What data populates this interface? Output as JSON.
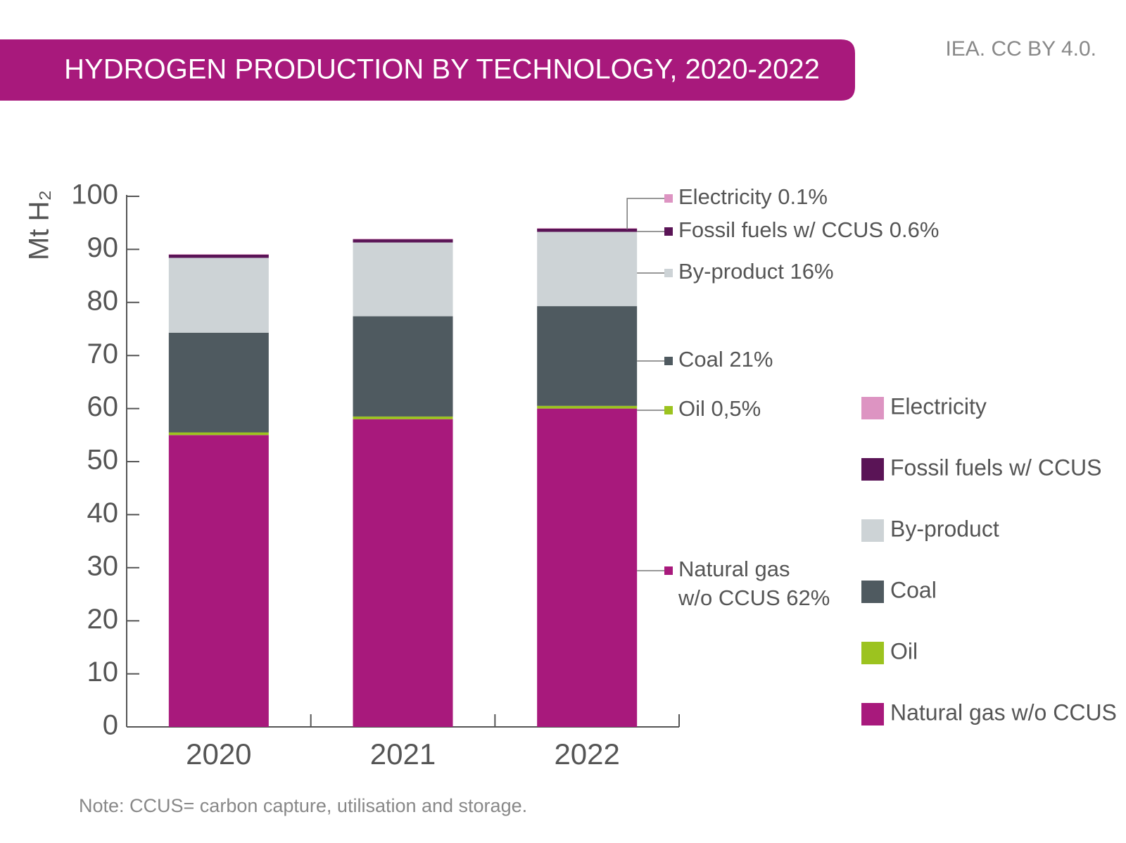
{
  "chart_data": {
    "type": "stacked_bar",
    "title": "HYDROGEN PRODUCTION BY TECHNOLOGY, 2020-2022",
    "source": "IEA. CC BY 4.0.",
    "y_label": "Mt H₂",
    "note": "Note: CCUS= carbon capture, utilisation and storage.",
    "categories": [
      "2020",
      "2021",
      "2022"
    ],
    "series": [
      {
        "name": "Natural gas w/o CCUS",
        "color": "#a8197c",
        "values": [
          55.0,
          58.0,
          60.0
        ]
      },
      {
        "name": "Oil",
        "color": "#9cc31f",
        "values": [
          0.5,
          0.5,
          0.5
        ]
      },
      {
        "name": "Coal",
        "color": "#4f5a60",
        "values": [
          18.8,
          18.9,
          18.8
        ]
      },
      {
        "name": "By-product",
        "color": "#cdd3d6",
        "values": [
          14.1,
          13.9,
          14.0
        ]
      },
      {
        "name": "Fossil fuels w/ CCUS",
        "color": "#5a1456",
        "values": [
          0.6,
          0.6,
          0.6
        ]
      },
      {
        "name": "Electricity",
        "color": "#dd94c2",
        "values": [
          0.1,
          0.1,
          0.1
        ]
      }
    ],
    "annotations": [
      [
        "Electricity 0.1%"
      ],
      [
        "Fossil fuels w/ CCUS 0.6%"
      ],
      [
        "By-product 16%"
      ],
      [
        "Coal 21%"
      ],
      [
        "Oil 0,5%"
      ],
      [
        "Natural gas",
        "w/o CCUS 62%"
      ]
    ],
    "ylim": [
      0,
      100
    ],
    "yticks": [
      0,
      10,
      20,
      30,
      40,
      50,
      60,
      70,
      80,
      90,
      100
    ]
  }
}
